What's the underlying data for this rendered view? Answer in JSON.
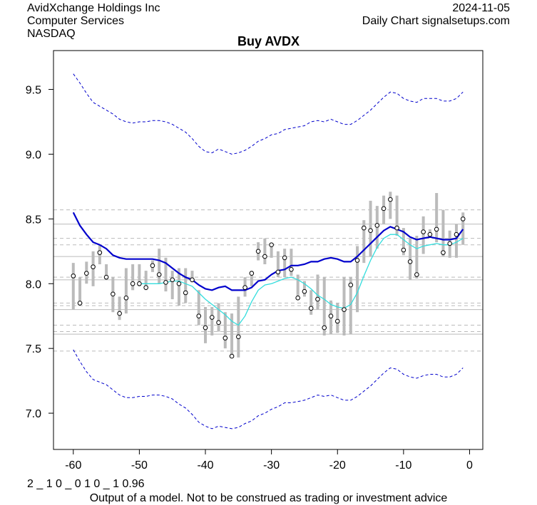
{
  "header": {
    "company": "AvidXchange Holdings Inc",
    "sector": "Computer Services",
    "exchange": "NASDAQ",
    "date": "2024-11-05",
    "source": "Daily Chart signalsetups.com"
  },
  "footer": {
    "code": "2 _ 1 0 _ 0 1 0 _ 1 0.96",
    "disclaimer": "Output of a model. Not to be construed as trading or investment advice"
  },
  "colors": {
    "bands": "#0000cc",
    "ma_slow": "#0000cc",
    "ma_fast": "#33dddd",
    "bars": "#bbbbbb",
    "hlines_dashed": "#bbbbbb",
    "hlines_solid": "#bbbbbb"
  },
  "chart_data": {
    "type": "line",
    "title": "Buy AVDX",
    "xlabel": "",
    "ylabel": "",
    "xlim": [
      -63,
      2
    ],
    "ylim": [
      6.72,
      9.8
    ],
    "x_ticks": [
      -60,
      -50,
      -40,
      -30,
      -20,
      -10,
      0
    ],
    "x_tick_labels": [
      "-60",
      "-50",
      "-40",
      "-30",
      "-20",
      "-10",
      "0"
    ],
    "y_ticks": [
      7.0,
      7.5,
      8.0,
      8.5,
      9.0,
      9.5
    ],
    "y_tick_labels": [
      "7.0",
      "7.5",
      "8.0",
      "8.5",
      "9.0",
      "9.5"
    ],
    "hlines_dashed": [
      8.57,
      8.35,
      8.3,
      8.05,
      7.85,
      7.83,
      7.68,
      7.63,
      7.48
    ],
    "hlines_solid": [
      8.46,
      8.21,
      8.03,
      7.8,
      7.61
    ],
    "x": [
      -60,
      -59,
      -58,
      -57,
      -56,
      -55,
      -54,
      -53,
      -52,
      -51,
      -50,
      -49,
      -48,
      -47,
      -46,
      -45,
      -44,
      -43,
      -42,
      -41,
      -40,
      -39,
      -38,
      -37,
      -36,
      -35,
      -34,
      -33,
      -32,
      -31,
      -30,
      -29,
      -28,
      -27,
      -26,
      -25,
      -24,
      -23,
      -22,
      -21,
      -20,
      -19,
      -18,
      -17,
      -16,
      -15,
      -14,
      -13,
      -12,
      -11,
      -10,
      -9,
      -8,
      -7,
      -6,
      -5,
      -4,
      -3,
      -2,
      -1
    ],
    "close": [
      8.06,
      7.85,
      8.08,
      8.13,
      8.24,
      8.05,
      7.92,
      7.77,
      7.89,
      8.0,
      8.0,
      7.97,
      8.14,
      8.07,
      8.01,
      8.03,
      8.0,
      7.93,
      8.03,
      7.75,
      7.66,
      7.74,
      7.7,
      7.58,
      7.44,
      7.59,
      7.97,
      8.08,
      8.25,
      8.21,
      8.3,
      8.09,
      8.2,
      8.11,
      7.89,
      7.94,
      7.81,
      7.88,
      7.66,
      7.75,
      7.71,
      7.8,
      7.99,
      8.18,
      8.43,
      8.41,
      8.45,
      8.58,
      8.65,
      8.43,
      8.26,
      8.17,
      8.07,
      8.4,
      8.38,
      8.42,
      8.24,
      8.31,
      8.38,
      8.5
    ],
    "high": [
      8.16,
      8.05,
      8.17,
      8.25,
      8.3,
      8.15,
      8.05,
      7.9,
      8.12,
      8.15,
      8.15,
      8.1,
      8.18,
      8.27,
      8.2,
      8.1,
      8.12,
      8.12,
      8.1,
      7.95,
      7.82,
      7.82,
      7.85,
      7.78,
      7.77,
      7.9,
      8.05,
      8.1,
      8.32,
      8.35,
      8.31,
      8.25,
      8.27,
      8.27,
      8.07,
      8.02,
      7.95,
      8.07,
      8.05,
      7.87,
      7.85,
      8.05,
      8.05,
      8.29,
      8.49,
      8.64,
      8.6,
      8.68,
      8.71,
      8.68,
      8.43,
      8.35,
      8.37,
      8.52,
      8.42,
      8.7,
      8.57,
      8.41,
      8.46,
      8.55
    ],
    "low": [
      7.8,
      7.83,
      8.0,
      7.98,
      8.15,
      8.03,
      7.78,
      7.72,
      7.77,
      7.95,
      7.98,
      7.95,
      8.09,
      8.0,
      7.94,
      7.88,
      7.83,
      7.85,
      8.01,
      7.68,
      7.54,
      7.6,
      7.63,
      7.5,
      7.43,
      7.43,
      7.9,
      7.98,
      8.18,
      8.15,
      8.2,
      8.05,
      8.05,
      8.06,
      7.88,
      7.9,
      7.76,
      7.8,
      7.6,
      7.61,
      7.62,
      7.6,
      7.61,
      7.78,
      8.16,
      8.21,
      8.27,
      8.46,
      8.5,
      8.37,
      8.22,
      8.03,
      8.04,
      8.23,
      8.37,
      8.32,
      8.21,
      8.2,
      8.2,
      8.3
    ],
    "series": [
      {
        "name": "ma_slow",
        "values": [
          8.55,
          8.45,
          8.38,
          8.32,
          8.3,
          8.27,
          8.22,
          8.2,
          8.19,
          8.19,
          8.19,
          8.19,
          8.19,
          8.18,
          8.16,
          8.12,
          8.08,
          8.05,
          8.03,
          7.99,
          7.96,
          7.95,
          7.97,
          7.98,
          7.95,
          7.95,
          7.95,
          7.97,
          8.02,
          8.03,
          8.07,
          8.1,
          8.11,
          8.14,
          8.14,
          8.15,
          8.17,
          8.17,
          8.19,
          8.2,
          8.19,
          8.17,
          8.17,
          8.21,
          8.26,
          8.31,
          8.36,
          8.41,
          8.44,
          8.42,
          8.4,
          8.36,
          8.34,
          8.35,
          8.36,
          8.35,
          8.34,
          8.34,
          8.35,
          8.42
        ]
      },
      {
        "name": "ma_fast",
        "values": [
          null,
          null,
          null,
          null,
          null,
          null,
          null,
          null,
          null,
          null,
          8.0,
          8.0,
          8.0,
          8.0,
          8.01,
          8.02,
          8.02,
          8.0,
          7.98,
          7.93,
          7.88,
          7.84,
          7.8,
          7.76,
          7.71,
          7.68,
          7.75,
          7.86,
          7.95,
          7.99,
          8.0,
          8.02,
          8.04,
          8.05,
          8.03,
          8.0,
          7.96,
          7.91,
          7.88,
          7.84,
          7.82,
          7.81,
          7.84,
          7.93,
          8.06,
          8.18,
          8.28,
          8.35,
          8.38,
          8.38,
          8.34,
          8.3,
          8.27,
          8.29,
          8.3,
          8.31,
          8.3,
          8.3,
          8.32,
          8.35
        ]
      },
      {
        "name": "upper_band",
        "values": [
          9.62,
          9.55,
          9.47,
          9.4,
          9.37,
          9.34,
          9.31,
          9.27,
          9.25,
          9.24,
          9.25,
          9.25,
          9.26,
          9.26,
          9.25,
          9.23,
          9.2,
          9.17,
          9.12,
          9.06,
          9.02,
          9.01,
          9.04,
          9.02,
          9.0,
          9.01,
          9.03,
          9.06,
          9.1,
          9.12,
          9.15,
          9.16,
          9.19,
          9.2,
          9.21,
          9.22,
          9.25,
          9.26,
          9.25,
          9.27,
          9.25,
          9.23,
          9.23,
          9.26,
          9.3,
          9.34,
          9.39,
          9.44,
          9.48,
          9.47,
          9.43,
          9.41,
          9.4,
          9.43,
          9.43,
          9.43,
          9.41,
          9.41,
          9.43,
          9.48
        ]
      },
      {
        "name": "lower_band",
        "values": [
          7.49,
          7.4,
          7.32,
          7.26,
          7.24,
          7.22,
          7.18,
          7.14,
          7.12,
          7.12,
          7.13,
          7.13,
          7.14,
          7.14,
          7.13,
          7.11,
          7.07,
          7.04,
          6.99,
          6.93,
          6.9,
          6.88,
          6.9,
          6.89,
          6.88,
          6.89,
          6.92,
          6.94,
          6.98,
          7.0,
          7.03,
          7.05,
          7.08,
          7.08,
          7.09,
          7.1,
          7.12,
          7.14,
          7.13,
          7.14,
          7.12,
          7.1,
          7.1,
          7.13,
          7.17,
          7.21,
          7.26,
          7.31,
          7.35,
          7.34,
          7.3,
          7.28,
          7.27,
          7.29,
          7.3,
          7.3,
          7.28,
          7.28,
          7.3,
          7.35
        ]
      }
    ]
  }
}
